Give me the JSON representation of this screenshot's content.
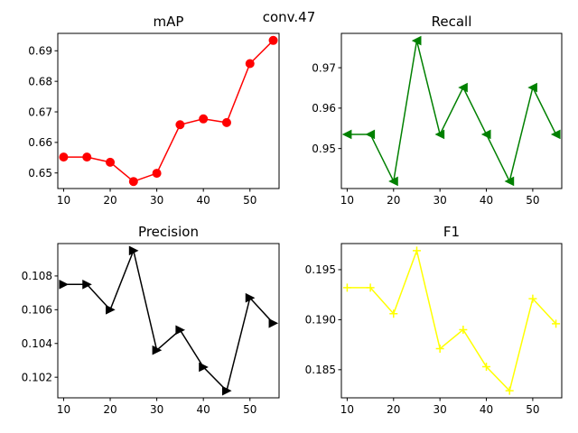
{
  "figure": {
    "suptitle": "conv.47"
  },
  "chart_data": [
    {
      "type": "line",
      "title": "mAP",
      "x": [
        10,
        15,
        20,
        25,
        30,
        35,
        40,
        45,
        50,
        55
      ],
      "y": [
        0.6552,
        0.6552,
        0.6535,
        0.6472,
        0.6499,
        0.6658,
        0.6677,
        0.6665,
        0.6858,
        0.6934
      ],
      "xlim": [
        8.75,
        56.25
      ],
      "ylim": [
        0.6449,
        0.6957
      ],
      "xticks": [
        10,
        20,
        30,
        40,
        50
      ],
      "yticks": [
        0.65,
        0.66,
        0.67,
        0.68,
        0.69
      ],
      "ytick_labels": [
        "0.65",
        "0.66",
        "0.67",
        "0.68",
        "0.69"
      ],
      "color": "#ff0000",
      "marker": "circle",
      "grid": false
    },
    {
      "type": "line",
      "title": "Recall",
      "x": [
        10,
        15,
        20,
        25,
        30,
        35,
        40,
        45,
        50,
        55
      ],
      "y": [
        0.9535,
        0.9535,
        0.9419,
        0.9767,
        0.9535,
        0.9651,
        0.9535,
        0.9419,
        0.9651,
        0.9535
      ],
      "xlim": [
        8.75,
        56.25
      ],
      "ylim": [
        0.9401,
        0.9785
      ],
      "xticks": [
        10,
        20,
        30,
        40,
        50
      ],
      "yticks": [
        0.95,
        0.96,
        0.97
      ],
      "ytick_labels": [
        "0.95",
        "0.96",
        "0.97"
      ],
      "color": "#008000",
      "marker": "triangle-left",
      "grid": false
    },
    {
      "type": "line",
      "title": "Precision",
      "x": [
        10,
        15,
        20,
        25,
        30,
        35,
        40,
        45,
        50,
        55
      ],
      "y": [
        0.1075,
        0.1075,
        0.106,
        0.1095,
        0.1036,
        0.1048,
        0.1026,
        0.1012,
        0.1067,
        0.1052
      ],
      "xlim": [
        8.75,
        56.25
      ],
      "ylim": [
        0.10078,
        0.10992
      ],
      "xticks": [
        10,
        20,
        30,
        40,
        50
      ],
      "yticks": [
        0.102,
        0.104,
        0.106,
        0.108
      ],
      "ytick_labels": [
        "0.102",
        "0.104",
        "0.106",
        "0.108"
      ],
      "color": "#000000",
      "marker": "triangle-right",
      "grid": false
    },
    {
      "type": "line",
      "title": "F1",
      "x": [
        10,
        15,
        20,
        25,
        30,
        35,
        40,
        45,
        50,
        55
      ],
      "y": [
        0.1932,
        0.1932,
        0.1906,
        0.1969,
        0.1871,
        0.189,
        0.1853,
        0.1829,
        0.1921,
        0.1896
      ],
      "xlim": [
        8.75,
        56.25
      ],
      "ylim": [
        0.18219,
        0.19761
      ],
      "xticks": [
        10,
        20,
        30,
        40,
        50
      ],
      "yticks": [
        0.185,
        0.19,
        0.195
      ],
      "ytick_labels": [
        "0.185",
        "0.190",
        "0.195"
      ],
      "color": "#ffff00",
      "marker": "plus",
      "grid": false
    }
  ]
}
